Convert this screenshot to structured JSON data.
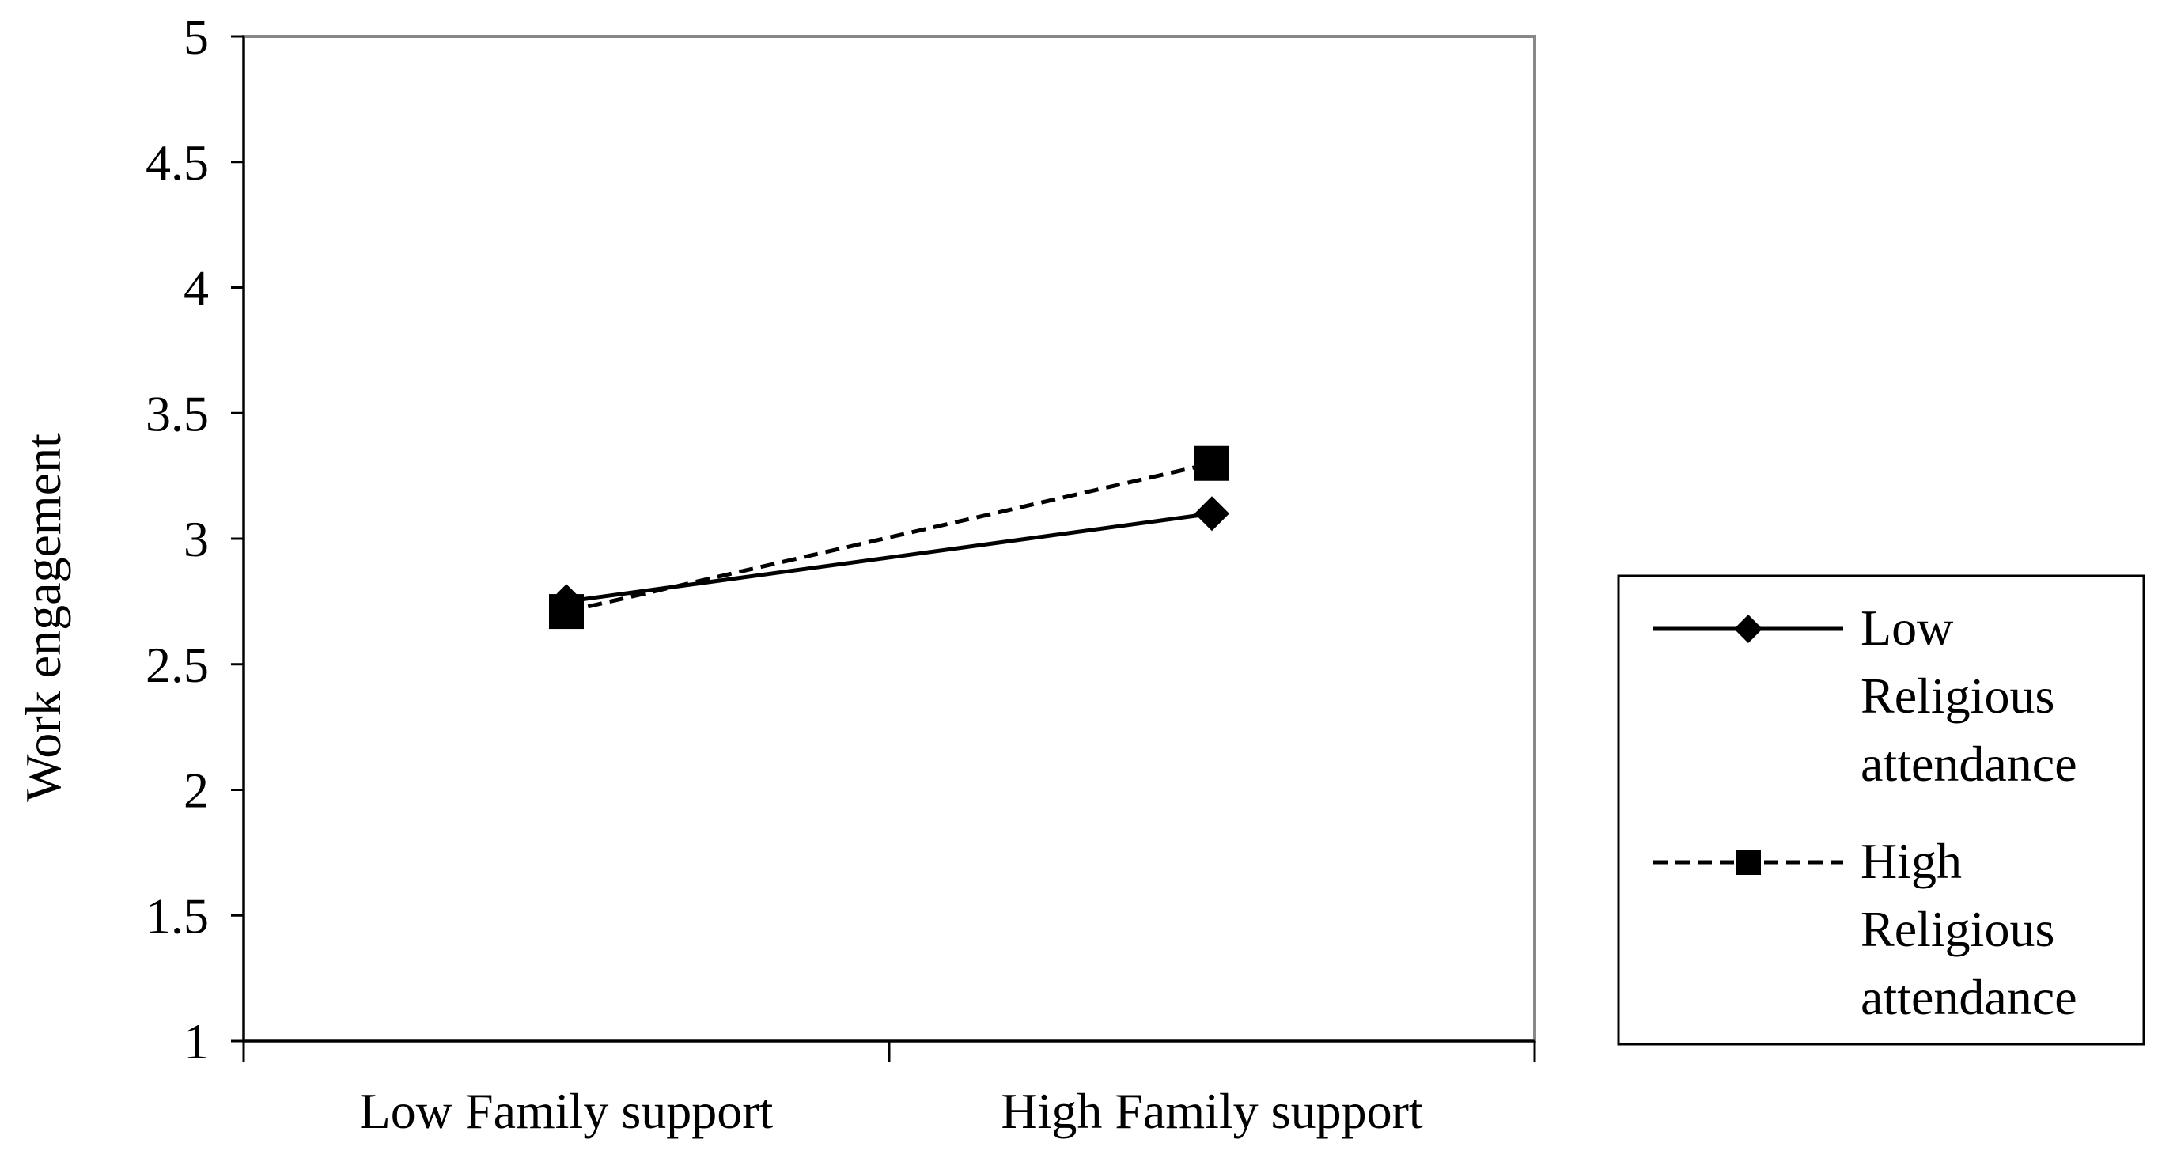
{
  "chart_data": {
    "type": "line",
    "title": "",
    "xlabel": "",
    "ylabel": "Work engagement",
    "categories": [
      "Low Family support",
      "High Family support"
    ],
    "ylim": [
      1,
      5
    ],
    "yticks": [
      "1",
      "1.5",
      "2",
      "2.5",
      "3",
      "3.5",
      "4",
      "4.5",
      "5"
    ],
    "grid": false,
    "legend_position": "right",
    "series": [
      {
        "name_lines": [
          "Low",
          "Religious",
          "attendance"
        ],
        "values": [
          2.75,
          3.1
        ],
        "line_style": "solid",
        "marker": "diamond",
        "color": "#000000"
      },
      {
        "name_lines": [
          "High",
          "Religious",
          "attendance"
        ],
        "values": [
          2.71,
          3.3
        ],
        "line_style": "dashed",
        "marker": "square",
        "color": "#000000"
      }
    ]
  }
}
